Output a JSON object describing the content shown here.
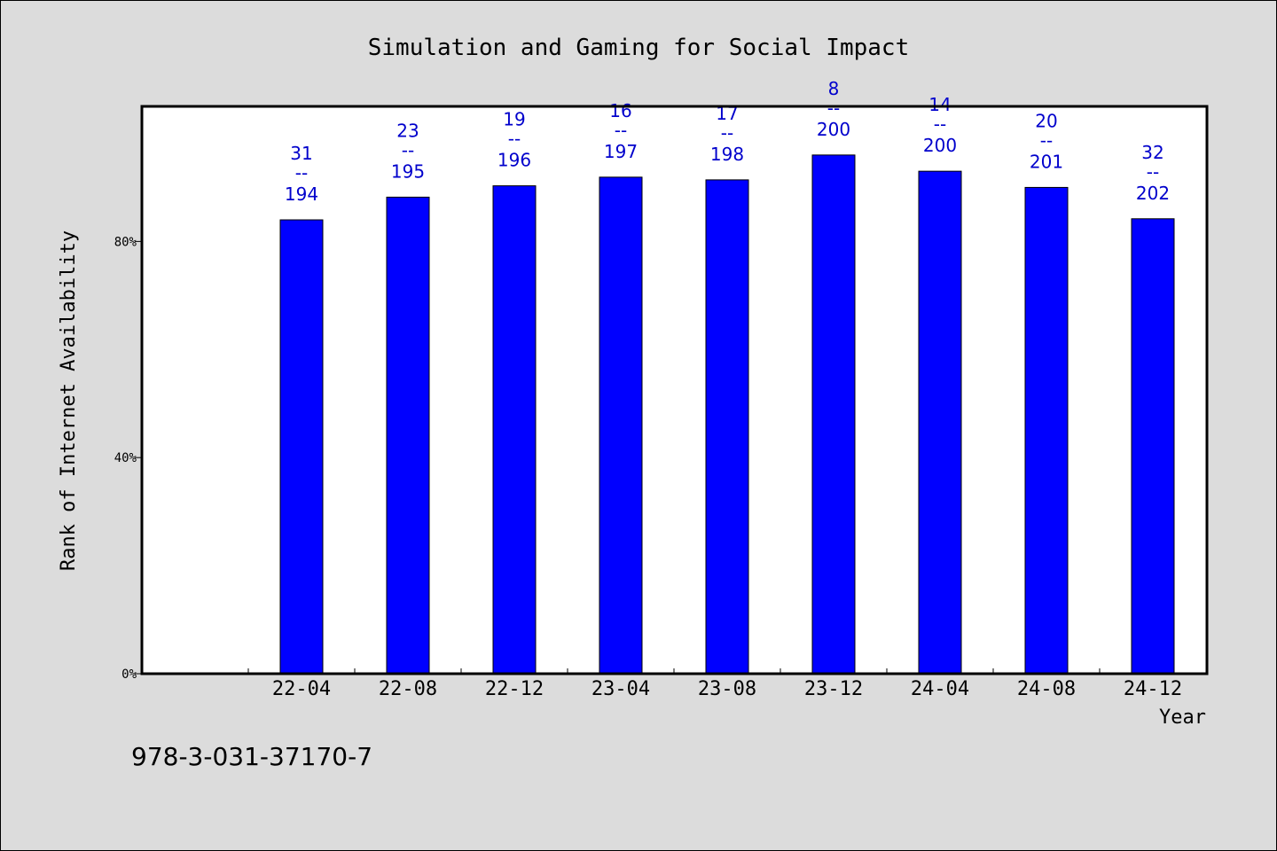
{
  "chart_data": {
    "type": "bar",
    "title": "Simulation and Gaming for Social Impact",
    "xlabel": "Year",
    "ylabel": "Rank of Internet Availability",
    "ylim": [
      0,
      1.05
    ],
    "yticks": [
      {
        "value": 0,
        "label": "0%"
      },
      {
        "value": 0.4,
        "label": "40%"
      },
      {
        "value": 0.8,
        "label": "80%"
      }
    ],
    "categories": [
      "22-04",
      "22-08",
      "22-12",
      "23-04",
      "23-08",
      "23-12",
      "24-04",
      "24-08",
      "24-12"
    ],
    "values": [
      0.84,
      0.882,
      0.903,
      0.919,
      0.914,
      0.96,
      0.93,
      0.9,
      0.842
    ],
    "ranks": [
      "31",
      "23",
      "19",
      "16",
      "17",
      "8",
      "14",
      "20",
      "32"
    ],
    "totals": [
      "194",
      "195",
      "196",
      "197",
      "198",
      "200",
      "200",
      "201",
      "202"
    ],
    "separator": "--",
    "grid": false,
    "bar_color": "#0000ff",
    "label_color": "#0000cc"
  },
  "footer": {
    "isbn": "978-3-031-37170-7"
  }
}
